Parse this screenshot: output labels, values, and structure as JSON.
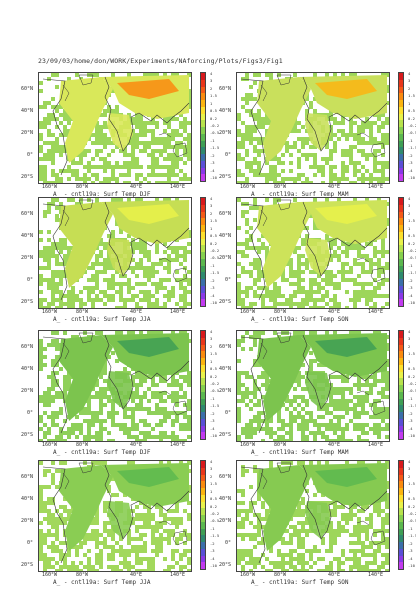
{
  "header": {
    "path": "23/09/03/home/don/WORK/Experiments/NAforcing/Plots/Figs3/Fig1"
  },
  "map_axes": {
    "lat_labels": [
      "60°N",
      "40°N",
      "20°N",
      "0°",
      "20°S"
    ],
    "lon_labels": [
      "160°W",
      "80°W",
      "40°E",
      "140°E"
    ]
  },
  "colorbar": {
    "ticks": [
      "4",
      "3",
      "2",
      "1.5",
      "1",
      "0.5",
      "0.2",
      "-0.2",
      "-0.5",
      "-1",
      "-1.5",
      "-2",
      "-3",
      "-4",
      "-10"
    ],
    "colors": [
      "#d7191c",
      "#e8361b",
      "#f45a17",
      "#fa8a0f",
      "#fbb410",
      "#fde02d",
      "#e9f24a",
      "#b8e34c",
      "#86d04e",
      "#5cb84f",
      "#3f9f55",
      "#2f8a6e",
      "#3b6fa9",
      "#5a4fd6",
      "#8a39e8",
      "#c23bf0"
    ]
  },
  "panels": [
    {
      "title": "A_ - cntl19a: Surf Temp DJF",
      "dominant": "#d9e85a",
      "accent": "#fa8a0f",
      "ocean_pattern": "#9dd65a"
    },
    {
      "title": "A_ - cntl19a: Surf Temp MAM",
      "dominant": "#c9e05c",
      "accent": "#fbb410",
      "ocean_pattern": "#9dd65a"
    },
    {
      "title": "A_ - cntl19a: Surf Temp JJA",
      "dominant": "#c6de54",
      "accent": "#e9f24a",
      "ocean_pattern": "#9dd65a"
    },
    {
      "title": "A_ - cntl19a: Surf Temp SON",
      "dominant": "#cde35a",
      "accent": "#e9f24a",
      "ocean_pattern": "#9dd65a"
    },
    {
      "title": "A_ - cntl19a: Surf Temp DJF",
      "dominant": "#7cc44e",
      "accent": "#3f9f55",
      "ocean_pattern": "#8fd05a"
    },
    {
      "title": "A_ - cntl19a: Surf Temp MAM",
      "dominant": "#7cc44e",
      "accent": "#3f9f55",
      "ocean_pattern": "#8fd05a"
    },
    {
      "title": "A_ - cntl19a: Surf Temp JJA",
      "dominant": "#8acd53",
      "accent": "#5cb84f",
      "ocean_pattern": "#a2d85c"
    },
    {
      "title": "A_ - cntl19a: Surf Temp SON",
      "dominant": "#86ca51",
      "accent": "#5cb84f",
      "ocean_pattern": "#9dd65a"
    }
  ]
}
